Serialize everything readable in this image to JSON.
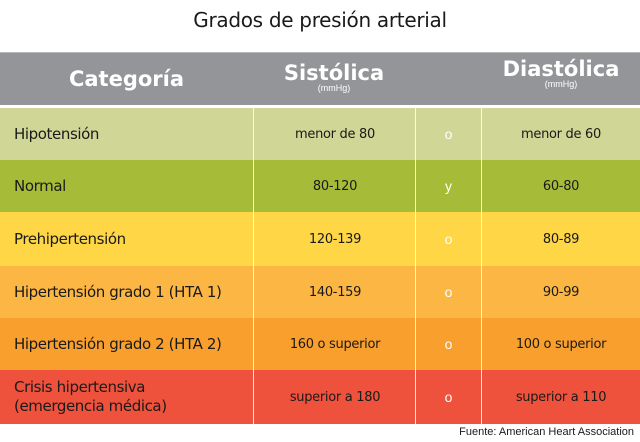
{
  "title": "Grados de presión arterial",
  "header": {
    "category": "Categoría",
    "systolic": "Sistólica",
    "systolic_unit": "(mmHg)",
    "diastolic": "Diastólica",
    "diastolic_unit": "(mmHg)"
  },
  "rows": [
    {
      "category": "Hipotensión",
      "category2": "",
      "systolic": "menor de 80",
      "operator": "o",
      "diastolic": "menor de 60",
      "color": "#cfd696",
      "height": 52
    },
    {
      "category": "Normal",
      "category2": "",
      "systolic": "80-120",
      "operator": "y",
      "diastolic": "60-80",
      "color": "#a6bc38",
      "height": 52
    },
    {
      "category": "Prehipertensión",
      "category2": "",
      "systolic": "120-139",
      "operator": "o",
      "diastolic": "80-89",
      "color": "#fed646",
      "height": 54
    },
    {
      "category": "Hipertensión grado 1 (HTA 1)",
      "category2": "",
      "systolic": "140-159",
      "operator": "o",
      "diastolic": "90-99",
      "color": "#fcb644",
      "height": 52
    },
    {
      "category": "Hipertensión grado 2 (HTA 2)",
      "category2": "",
      "systolic": "160 o superior",
      "operator": "o",
      "diastolic": "100 o superior",
      "color": "#f99f2e",
      "height": 52
    },
    {
      "category": "Crisis hipertensiva",
      "category2": "(emergencia médica)",
      "systolic": "superior a 180",
      "operator": "o",
      "diastolic": "superior a 110",
      "color": "#ef523c",
      "height": 54
    }
  ],
  "footer": "Fuente: American Heart Association"
}
